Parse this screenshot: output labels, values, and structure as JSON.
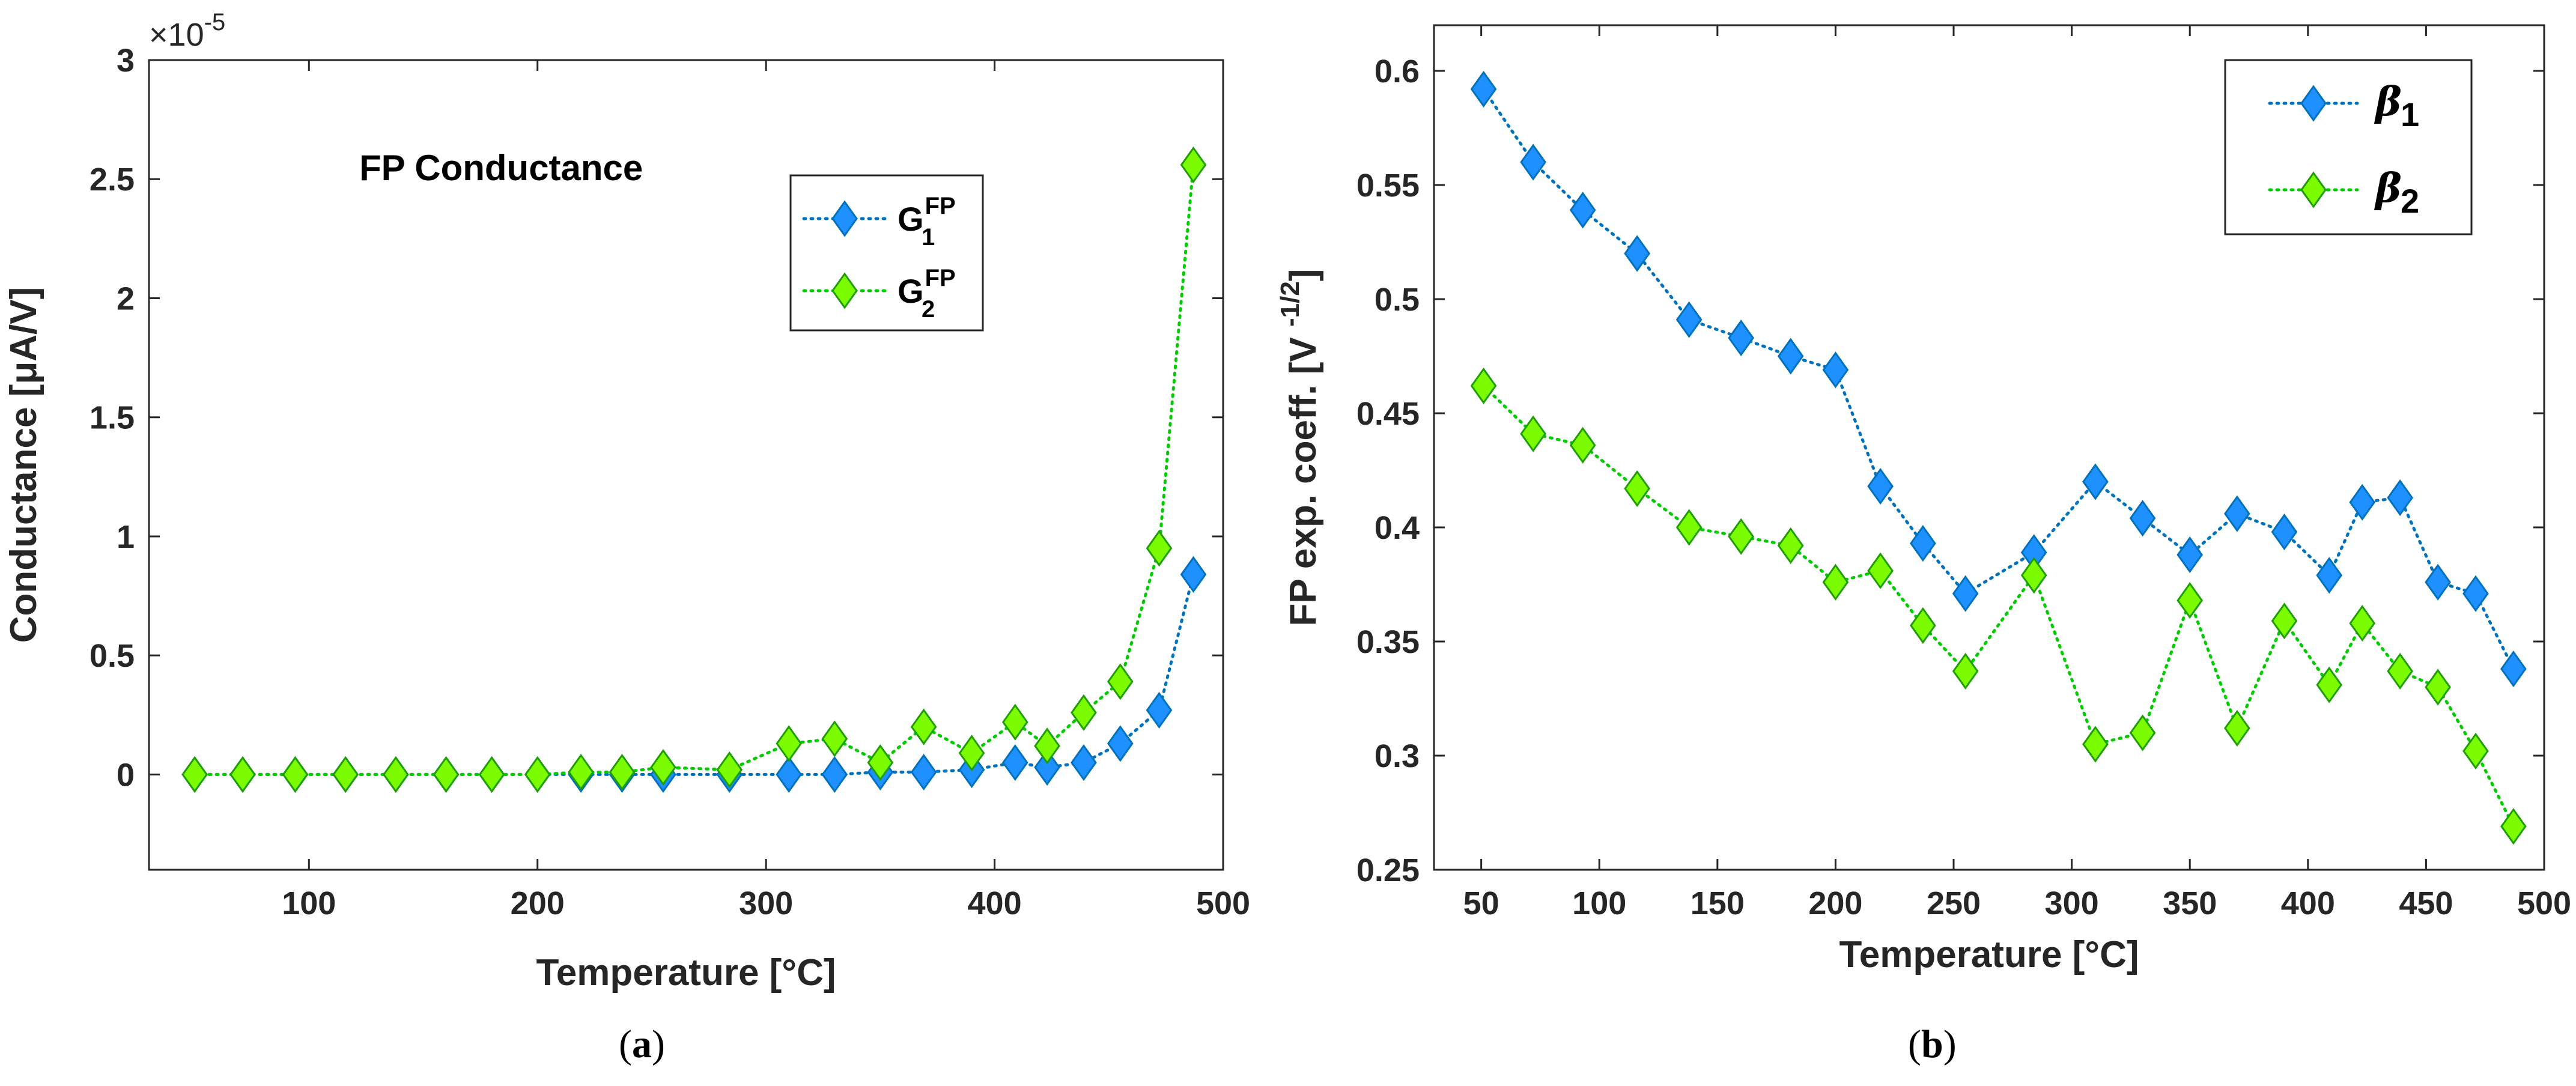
{
  "captions": {
    "a": "(a)",
    "b": "(b)"
  },
  "chart_data": [
    {
      "type": "line",
      "title": "FP Conductance",
      "xlabel": "Temperature [°C]",
      "ylabel": "Conductance [μA/V]",
      "exponent_label": "×10",
      "exponent_power": "-5",
      "xlim": [
        30,
        500
      ],
      "ylim": [
        -0.4,
        3
      ],
      "xticks": [
        100,
        200,
        300,
        400,
        500
      ],
      "yticks": [
        0,
        0.5,
        1,
        1.5,
        2,
        2.5,
        3
      ],
      "ytick_labels": [
        "0",
        "0.5",
        "1",
        "1.5",
        "2",
        "2.5",
        "3"
      ],
      "legend_position": "top-right",
      "series": [
        {
          "name": "G1FP",
          "label_main": "G",
          "label_sub": "1",
          "label_sup": "FP",
          "color": "#0072BD",
          "fill": "#1E90FF",
          "x": [
            50,
            71,
            94,
            116,
            138,
            160,
            180,
            200,
            219,
            237,
            255,
            284,
            310,
            330,
            350,
            369,
            390,
            409,
            423,
            439,
            455,
            472,
            487
          ],
          "y": [
            0,
            0,
            0,
            0,
            0,
            0,
            0,
            0,
            0,
            0,
            0,
            0,
            0,
            0,
            0.01,
            0.01,
            0.02,
            0.05,
            0.03,
            0.05,
            0.13,
            0.27,
            0.84
          ]
        },
        {
          "name": "G2FP",
          "label_main": "G",
          "label_sub": "2",
          "label_sup": "FP",
          "color": "#00CC00",
          "fill": "#7CFC00",
          "x": [
            50,
            71,
            94,
            116,
            138,
            160,
            180,
            200,
            219,
            237,
            255,
            284,
            310,
            330,
            350,
            369,
            390,
            409,
            423,
            439,
            455,
            472,
            487
          ],
          "y": [
            0,
            0,
            0,
            0,
            0,
            0,
            0,
            0,
            0.01,
            0.01,
            0.03,
            0.02,
            0.13,
            0.15,
            0.05,
            0.2,
            0.09,
            0.22,
            0.12,
            0.26,
            0.39,
            0.95,
            2.56
          ]
        }
      ]
    },
    {
      "type": "line",
      "title": "",
      "xlabel": "Temperature [°C]",
      "ylabel": "FP exp. coeff. [V ",
      "ylabel_power": "-1/2",
      "ylabel_end": "]",
      "xlim": [
        30,
        500
      ],
      "ylim": [
        0.25,
        0.62
      ],
      "xticks": [
        50,
        100,
        150,
        200,
        250,
        300,
        350,
        400,
        450,
        500
      ],
      "yticks": [
        0.25,
        0.3,
        0.35,
        0.4,
        0.45,
        0.5,
        0.55,
        0.6
      ],
      "ytick_labels": [
        "0.25",
        "0.3",
        "0.35",
        "0.4",
        "0.45",
        "0.5",
        "0.55",
        "0.6"
      ],
      "legend_position": "top-right",
      "series": [
        {
          "name": "β1",
          "label_main": "β",
          "label_sub": "1",
          "color": "#0072BD",
          "fill": "#1E90FF",
          "x": [
            51,
            72,
            93,
            116,
            138,
            160,
            181,
            200,
            219,
            237,
            255,
            284,
            310,
            330,
            350,
            370,
            390,
            409,
            423,
            439,
            455,
            471,
            487
          ],
          "y": [
            0.592,
            0.56,
            0.539,
            0.52,
            0.491,
            0.483,
            0.475,
            0.469,
            0.418,
            0.393,
            0.371,
            0.389,
            0.42,
            0.404,
            0.388,
            0.406,
            0.398,
            0.379,
            0.411,
            0.413,
            0.376,
            0.371,
            0.338
          ]
        },
        {
          "name": "β2",
          "label_main": "β",
          "label_sub": "2",
          "color": "#00CC00",
          "fill": "#7CFC00",
          "x": [
            51,
            72,
            93,
            116,
            138,
            160,
            181,
            200,
            219,
            237,
            255,
            284,
            310,
            330,
            350,
            370,
            390,
            409,
            423,
            439,
            455,
            471,
            487
          ],
          "y": [
            0.462,
            0.441,
            0.436,
            0.417,
            0.4,
            0.396,
            0.392,
            0.376,
            0.381,
            0.357,
            0.337,
            0.379,
            0.305,
            0.31,
            0.368,
            0.312,
            0.359,
            0.331,
            0.358,
            0.337,
            0.33,
            0.302,
            0.269
          ]
        }
      ]
    }
  ]
}
